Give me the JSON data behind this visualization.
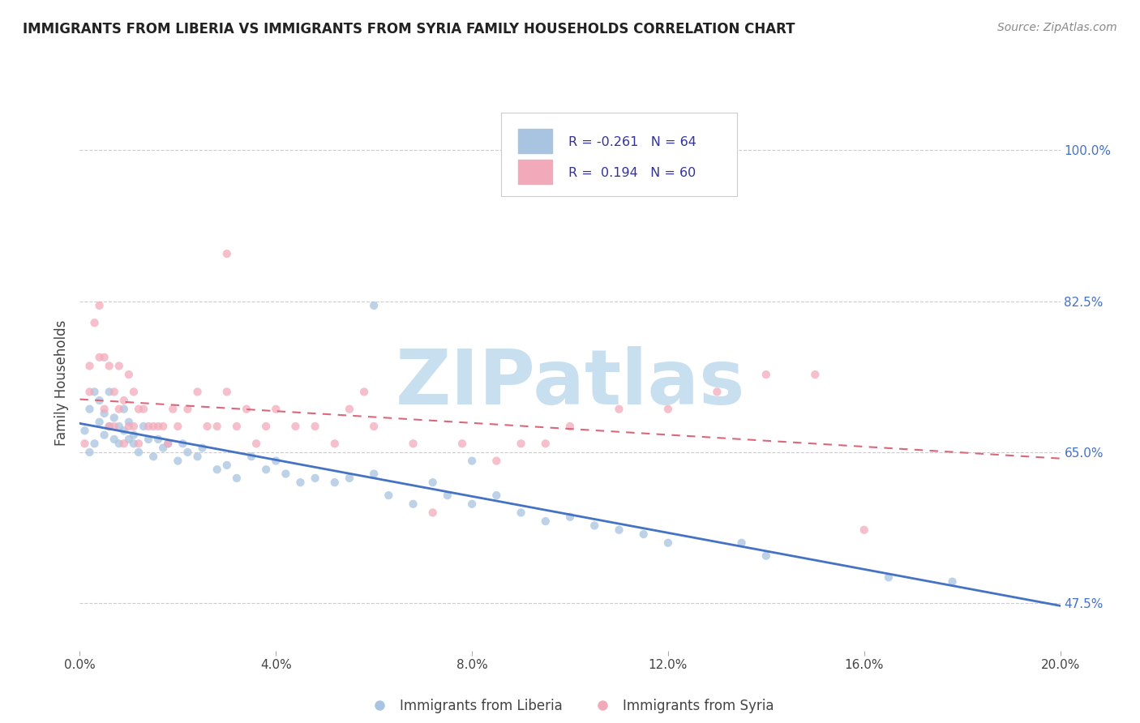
{
  "title": "IMMIGRANTS FROM LIBERIA VS IMMIGRANTS FROM SYRIA FAMILY HOUSEHOLDS CORRELATION CHART",
  "source": "Source: ZipAtlas.com",
  "ylabel": "Family Households",
  "legend_label1": "Immigrants from Liberia",
  "legend_label2": "Immigrants from Syria",
  "R1": -0.261,
  "N1": 64,
  "R2": 0.194,
  "N2": 60,
  "xlim": [
    0.0,
    0.2
  ],
  "ylim": [
    0.42,
    1.04
  ],
  "xticks": [
    0.0,
    0.04,
    0.08,
    0.12,
    0.16,
    0.2
  ],
  "yticks_right": [
    1.0,
    0.825,
    0.65,
    0.475
  ],
  "color_blue": "#A8C4E0",
  "color_pink": "#F2AABB",
  "line_blue": "#4472C4",
  "line_pink": "#D9687A",
  "background": "#FFFFFF",
  "watermark_text": "ZIPatlas",
  "watermark_color": "#C8DFF0",
  "title_fontsize": 12,
  "scatter_size": 55,
  "scatter_alpha": 0.75,
  "liberia_x": [
    0.001,
    0.002,
    0.002,
    0.003,
    0.003,
    0.004,
    0.004,
    0.005,
    0.005,
    0.006,
    0.006,
    0.007,
    0.007,
    0.008,
    0.008,
    0.009,
    0.009,
    0.01,
    0.01,
    0.011,
    0.011,
    0.012,
    0.013,
    0.014,
    0.015,
    0.016,
    0.017,
    0.018,
    0.02,
    0.021,
    0.022,
    0.024,
    0.025,
    0.028,
    0.03,
    0.032,
    0.035,
    0.038,
    0.04,
    0.042,
    0.045,
    0.048,
    0.052,
    0.055,
    0.06,
    0.063,
    0.068,
    0.072,
    0.075,
    0.08,
    0.085,
    0.09,
    0.095,
    0.1,
    0.105,
    0.11,
    0.115,
    0.12,
    0.135,
    0.14,
    0.06,
    0.08,
    0.165,
    0.178
  ],
  "liberia_y": [
    0.675,
    0.7,
    0.65,
    0.72,
    0.66,
    0.685,
    0.71,
    0.67,
    0.695,
    0.68,
    0.72,
    0.665,
    0.69,
    0.66,
    0.68,
    0.7,
    0.675,
    0.665,
    0.685,
    0.66,
    0.67,
    0.65,
    0.68,
    0.665,
    0.645,
    0.665,
    0.655,
    0.66,
    0.64,
    0.66,
    0.65,
    0.645,
    0.655,
    0.63,
    0.635,
    0.62,
    0.645,
    0.63,
    0.64,
    0.625,
    0.615,
    0.62,
    0.615,
    0.62,
    0.625,
    0.6,
    0.59,
    0.615,
    0.6,
    0.59,
    0.6,
    0.58,
    0.57,
    0.575,
    0.565,
    0.56,
    0.555,
    0.545,
    0.545,
    0.53,
    0.82,
    0.64,
    0.505,
    0.5
  ],
  "syria_x": [
    0.001,
    0.002,
    0.002,
    0.003,
    0.004,
    0.004,
    0.005,
    0.005,
    0.006,
    0.006,
    0.007,
    0.007,
    0.008,
    0.008,
    0.009,
    0.009,
    0.01,
    0.01,
    0.011,
    0.011,
    0.012,
    0.012,
    0.013,
    0.014,
    0.015,
    0.016,
    0.017,
    0.018,
    0.019,
    0.02,
    0.022,
    0.024,
    0.026,
    0.028,
    0.03,
    0.032,
    0.034,
    0.036,
    0.038,
    0.04,
    0.044,
    0.048,
    0.052,
    0.055,
    0.058,
    0.06,
    0.068,
    0.072,
    0.078,
    0.085,
    0.09,
    0.095,
    0.1,
    0.11,
    0.12,
    0.13,
    0.14,
    0.15,
    0.03,
    0.16
  ],
  "syria_y": [
    0.66,
    0.72,
    0.75,
    0.8,
    0.76,
    0.82,
    0.7,
    0.76,
    0.68,
    0.75,
    0.68,
    0.72,
    0.7,
    0.75,
    0.66,
    0.71,
    0.68,
    0.74,
    0.68,
    0.72,
    0.66,
    0.7,
    0.7,
    0.68,
    0.68,
    0.68,
    0.68,
    0.66,
    0.7,
    0.68,
    0.7,
    0.72,
    0.68,
    0.68,
    0.72,
    0.68,
    0.7,
    0.66,
    0.68,
    0.7,
    0.68,
    0.68,
    0.66,
    0.7,
    0.72,
    0.68,
    0.66,
    0.58,
    0.66,
    0.64,
    0.66,
    0.66,
    0.68,
    0.7,
    0.7,
    0.72,
    0.74,
    0.74,
    0.88,
    0.56
  ]
}
